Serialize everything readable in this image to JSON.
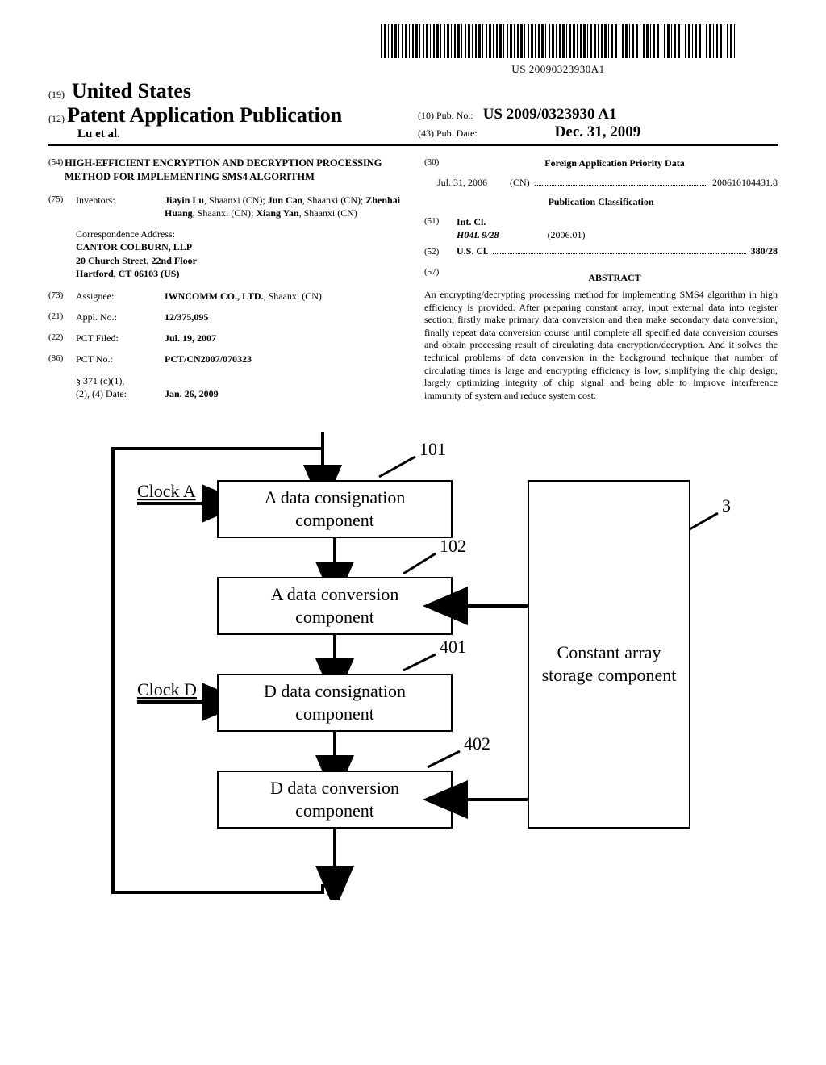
{
  "barcode_text": "US 20090323930A1",
  "header": {
    "code19": "(19)",
    "country": "United States",
    "code12": "(12)",
    "pub_type": "Patent Application Publication",
    "authors": "Lu et al.",
    "code10": "(10)",
    "pub_no_label": "Pub. No.:",
    "pub_no": "US 2009/0323930 A1",
    "code43": "(43)",
    "pub_date_label": "Pub. Date:",
    "pub_date": "Dec. 31, 2009"
  },
  "left": {
    "f54": {
      "num": "(54)",
      "title": "HIGH-EFFICIENT ENCRYPTION AND DECRYPTION PROCESSING METHOD FOR IMPLEMENTING SMS4 ALGORITHM"
    },
    "f75": {
      "num": "(75)",
      "label": "Inventors:",
      "val_html": "<b>Jiayin Lu</b>, Shaanxi (CN); <b>Jun Cao</b>, Shaanxi (CN); <b>Zhenhai Huang</b>, Shaanxi (CN); <b>Xiang Yan</b>, Shaanxi (CN)"
    },
    "corr": {
      "label": "Correspondence Address:",
      "l1": "CANTOR COLBURN, LLP",
      "l2": "20 Church Street, 22nd Floor",
      "l3": "Hartford, CT 06103 (US)"
    },
    "f73": {
      "num": "(73)",
      "label": "Assignee:",
      "val_html": "<b>IWNCOMM CO., LTD.</b>, Shaanxi (CN)"
    },
    "f21": {
      "num": "(21)",
      "label": "Appl. No.:",
      "val": "12/375,095"
    },
    "f22": {
      "num": "(22)",
      "label": "PCT Filed:",
      "val": "Jul. 19, 2007"
    },
    "f86": {
      "num": "(86)",
      "label": "PCT No.:",
      "val": "PCT/CN2007/070323"
    },
    "f371": {
      "label1": "§ 371 (c)(1),",
      "label2": "(2), (4) Date:",
      "val": "Jan. 26, 2009"
    }
  },
  "right": {
    "f30": {
      "num": "(30)",
      "heading": "Foreign Application Priority Data",
      "date": "Jul. 31, 2006",
      "country": "(CN)",
      "appno": "200610104431.8"
    },
    "pubclass_heading": "Publication Classification",
    "f51": {
      "num": "(51)",
      "label": "Int. Cl.",
      "code": "H04L  9/28",
      "year": "(2006.01)"
    },
    "f52": {
      "num": "(52)",
      "label": "U.S. Cl.",
      "val": "380/28"
    },
    "f57": {
      "num": "(57)",
      "heading": "ABSTRACT",
      "text": "An encrypting/decrypting processing method for implementing SMS4 algorithm in high efficiency is provided. After preparing constant array, input external data into register section, firstly make primary data conversion and then make secondary data conversion, finally repeat data conversion course until complete all specified data conversion courses and obtain processing result of circulating data encryption/decryption. And it solves the technical problems of data conversion in the background technique that number of circulating times is large and encrypting efficiency is low, simplifying the chip design, largely optimizing integrity of chip signal and being able to improve interference immunity of system and reduce system cost."
    }
  },
  "diagram": {
    "clockA": "Clock A",
    "clockD": "Clock D",
    "box101": {
      "ref": "101",
      "l1": "A data consignation",
      "l2": "component"
    },
    "box102": {
      "ref": "102",
      "l1": "A data conversion",
      "l2": "component"
    },
    "box401": {
      "ref": "401",
      "l1": "D data consignation",
      "l2": "component"
    },
    "box402": {
      "ref": "402",
      "l1": "D data conversion",
      "l2": "component"
    },
    "box3": {
      "ref": "3",
      "l1": "Constant array",
      "l2": "storage component"
    },
    "colors": {
      "stroke": "#000000",
      "bg": "#ffffff"
    }
  }
}
